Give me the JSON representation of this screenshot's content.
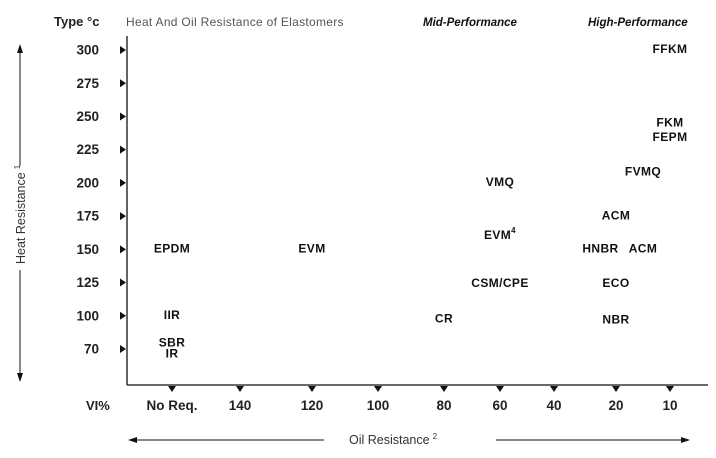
{
  "chart_data": {
    "type": "scatter",
    "title": "Heat And Oil Resistance of Elastomers",
    "y_corner_label": "Type °c",
    "x_corner_label": "VI%",
    "ylabel": "Heat Resistance",
    "ylabel_sup": "1",
    "xlabel": "Oil Resistance",
    "xlabel_sup": "2",
    "sections": [
      "Mid-Performance",
      "High-Performance"
    ],
    "y_ticks": [
      70,
      100,
      125,
      150,
      175,
      200,
      225,
      250,
      275,
      300
    ],
    "x_ticks": [
      "No Req.",
      "140",
      "120",
      "100",
      "80",
      "60",
      "40",
      "20",
      "10"
    ],
    "points": [
      {
        "label": "FFKM",
        "x": "10",
        "y": 300
      },
      {
        "label": "FKM",
        "x": "10",
        "y": 245
      },
      {
        "label": "FEPM",
        "x": "10",
        "y": 234
      },
      {
        "label": "FVMQ",
        "x": "15",
        "y": 208
      },
      {
        "label": "VMQ",
        "x": "60",
        "y": 200
      },
      {
        "label": "ACM",
        "x": "20",
        "y": 175
      },
      {
        "label": "EVM",
        "sup": "4",
        "x": "60",
        "y": 160
      },
      {
        "label": "HNBR",
        "x": "25",
        "y": 150
      },
      {
        "label": "ACM",
        "x": "15",
        "y": 150
      },
      {
        "label": "EPDM",
        "x": "No Req.",
        "y": 150
      },
      {
        "label": "EVM",
        "x": "120",
        "y": 150
      },
      {
        "label": "CSM/CPE",
        "x": "60",
        "y": 124
      },
      {
        "label": "ECO",
        "x": "20",
        "y": 124
      },
      {
        "label": "IIR",
        "x": "No Req.",
        "y": 100
      },
      {
        "label": "CR",
        "x": "80",
        "y": 97
      },
      {
        "label": "NBR",
        "x": "20",
        "y": 96
      },
      {
        "label": "SBR",
        "x": "No Req.",
        "y": 75
      },
      {
        "label": "IR",
        "x": "No Req.",
        "y": 65
      }
    ]
  }
}
